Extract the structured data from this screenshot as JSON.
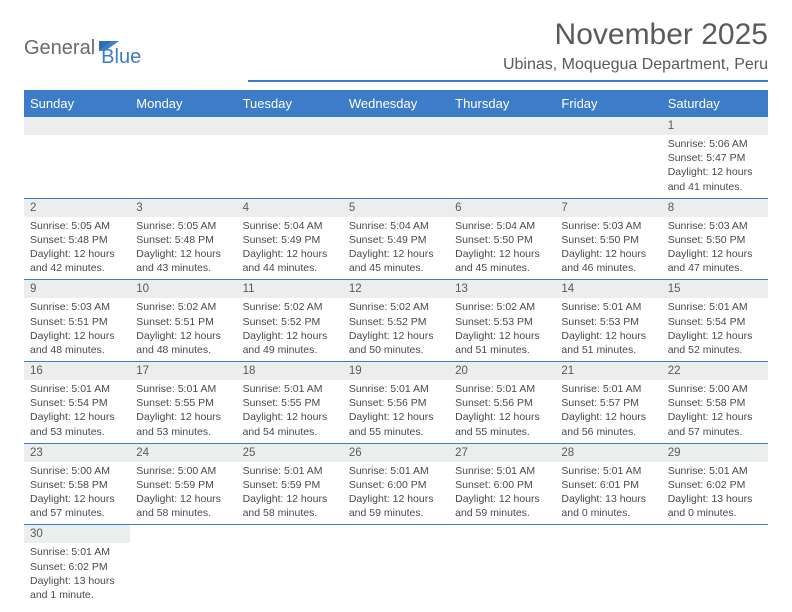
{
  "brand": {
    "general": "General",
    "blue": "Blue"
  },
  "header": {
    "month_title": "November 2025",
    "location": "Ubinas, Moquegua Department, Peru"
  },
  "colors": {
    "accent": "#3d7cc9",
    "header_bg": "#3d7cc9",
    "daynum_bg": "#eceeee",
    "text": "#4a4a4a"
  },
  "weekdays": [
    "Sunday",
    "Monday",
    "Tuesday",
    "Wednesday",
    "Thursday",
    "Friday",
    "Saturday"
  ],
  "weeks": [
    [
      null,
      null,
      null,
      null,
      null,
      null,
      {
        "n": "1",
        "sunrise": "Sunrise: 5:06 AM",
        "sunset": "Sunset: 5:47 PM",
        "daylight": "Daylight: 12 hours and 41 minutes."
      }
    ],
    [
      {
        "n": "2",
        "sunrise": "Sunrise: 5:05 AM",
        "sunset": "Sunset: 5:48 PM",
        "daylight": "Daylight: 12 hours and 42 minutes."
      },
      {
        "n": "3",
        "sunrise": "Sunrise: 5:05 AM",
        "sunset": "Sunset: 5:48 PM",
        "daylight": "Daylight: 12 hours and 43 minutes."
      },
      {
        "n": "4",
        "sunrise": "Sunrise: 5:04 AM",
        "sunset": "Sunset: 5:49 PM",
        "daylight": "Daylight: 12 hours and 44 minutes."
      },
      {
        "n": "5",
        "sunrise": "Sunrise: 5:04 AM",
        "sunset": "Sunset: 5:49 PM",
        "daylight": "Daylight: 12 hours and 45 minutes."
      },
      {
        "n": "6",
        "sunrise": "Sunrise: 5:04 AM",
        "sunset": "Sunset: 5:50 PM",
        "daylight": "Daylight: 12 hours and 45 minutes."
      },
      {
        "n": "7",
        "sunrise": "Sunrise: 5:03 AM",
        "sunset": "Sunset: 5:50 PM",
        "daylight": "Daylight: 12 hours and 46 minutes."
      },
      {
        "n": "8",
        "sunrise": "Sunrise: 5:03 AM",
        "sunset": "Sunset: 5:50 PM",
        "daylight": "Daylight: 12 hours and 47 minutes."
      }
    ],
    [
      {
        "n": "9",
        "sunrise": "Sunrise: 5:03 AM",
        "sunset": "Sunset: 5:51 PM",
        "daylight": "Daylight: 12 hours and 48 minutes."
      },
      {
        "n": "10",
        "sunrise": "Sunrise: 5:02 AM",
        "sunset": "Sunset: 5:51 PM",
        "daylight": "Daylight: 12 hours and 48 minutes."
      },
      {
        "n": "11",
        "sunrise": "Sunrise: 5:02 AM",
        "sunset": "Sunset: 5:52 PM",
        "daylight": "Daylight: 12 hours and 49 minutes."
      },
      {
        "n": "12",
        "sunrise": "Sunrise: 5:02 AM",
        "sunset": "Sunset: 5:52 PM",
        "daylight": "Daylight: 12 hours and 50 minutes."
      },
      {
        "n": "13",
        "sunrise": "Sunrise: 5:02 AM",
        "sunset": "Sunset: 5:53 PM",
        "daylight": "Daylight: 12 hours and 51 minutes."
      },
      {
        "n": "14",
        "sunrise": "Sunrise: 5:01 AM",
        "sunset": "Sunset: 5:53 PM",
        "daylight": "Daylight: 12 hours and 51 minutes."
      },
      {
        "n": "15",
        "sunrise": "Sunrise: 5:01 AM",
        "sunset": "Sunset: 5:54 PM",
        "daylight": "Daylight: 12 hours and 52 minutes."
      }
    ],
    [
      {
        "n": "16",
        "sunrise": "Sunrise: 5:01 AM",
        "sunset": "Sunset: 5:54 PM",
        "daylight": "Daylight: 12 hours and 53 minutes."
      },
      {
        "n": "17",
        "sunrise": "Sunrise: 5:01 AM",
        "sunset": "Sunset: 5:55 PM",
        "daylight": "Daylight: 12 hours and 53 minutes."
      },
      {
        "n": "18",
        "sunrise": "Sunrise: 5:01 AM",
        "sunset": "Sunset: 5:55 PM",
        "daylight": "Daylight: 12 hours and 54 minutes."
      },
      {
        "n": "19",
        "sunrise": "Sunrise: 5:01 AM",
        "sunset": "Sunset: 5:56 PM",
        "daylight": "Daylight: 12 hours and 55 minutes."
      },
      {
        "n": "20",
        "sunrise": "Sunrise: 5:01 AM",
        "sunset": "Sunset: 5:56 PM",
        "daylight": "Daylight: 12 hours and 55 minutes."
      },
      {
        "n": "21",
        "sunrise": "Sunrise: 5:01 AM",
        "sunset": "Sunset: 5:57 PM",
        "daylight": "Daylight: 12 hours and 56 minutes."
      },
      {
        "n": "22",
        "sunrise": "Sunrise: 5:00 AM",
        "sunset": "Sunset: 5:58 PM",
        "daylight": "Daylight: 12 hours and 57 minutes."
      }
    ],
    [
      {
        "n": "23",
        "sunrise": "Sunrise: 5:00 AM",
        "sunset": "Sunset: 5:58 PM",
        "daylight": "Daylight: 12 hours and 57 minutes."
      },
      {
        "n": "24",
        "sunrise": "Sunrise: 5:00 AM",
        "sunset": "Sunset: 5:59 PM",
        "daylight": "Daylight: 12 hours and 58 minutes."
      },
      {
        "n": "25",
        "sunrise": "Sunrise: 5:01 AM",
        "sunset": "Sunset: 5:59 PM",
        "daylight": "Daylight: 12 hours and 58 minutes."
      },
      {
        "n": "26",
        "sunrise": "Sunrise: 5:01 AM",
        "sunset": "Sunset: 6:00 PM",
        "daylight": "Daylight: 12 hours and 59 minutes."
      },
      {
        "n": "27",
        "sunrise": "Sunrise: 5:01 AM",
        "sunset": "Sunset: 6:00 PM",
        "daylight": "Daylight: 12 hours and 59 minutes."
      },
      {
        "n": "28",
        "sunrise": "Sunrise: 5:01 AM",
        "sunset": "Sunset: 6:01 PM",
        "daylight": "Daylight: 13 hours and 0 minutes."
      },
      {
        "n": "29",
        "sunrise": "Sunrise: 5:01 AM",
        "sunset": "Sunset: 6:02 PM",
        "daylight": "Daylight: 13 hours and 0 minutes."
      }
    ],
    [
      {
        "n": "30",
        "sunrise": "Sunrise: 5:01 AM",
        "sunset": "Sunset: 6:02 PM",
        "daylight": "Daylight: 13 hours and 1 minute."
      },
      null,
      null,
      null,
      null,
      null,
      null
    ]
  ]
}
